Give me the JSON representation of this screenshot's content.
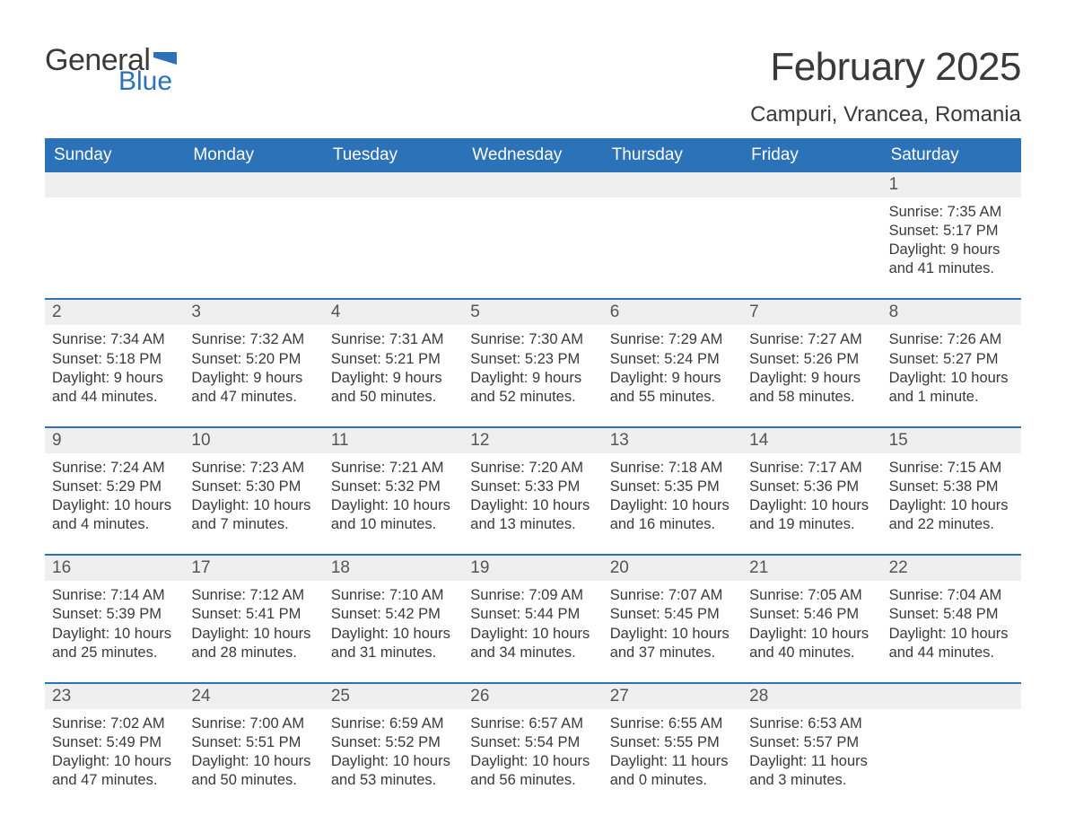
{
  "logo": {
    "text_general": "General",
    "text_blue": "Blue",
    "flag_color": "#2c72b8"
  },
  "title": "February 2025",
  "location": "Campuri, Vrancea, Romania",
  "colors": {
    "header_bg": "#2c72b8",
    "header_text": "#ffffff",
    "daynum_bg": "#efefef",
    "week_border": "#2c72b8",
    "body_text": "#3a3a3a",
    "background": "#ffffff"
  },
  "font": {
    "family": "Arial",
    "title_size_pt": 33,
    "location_size_pt": 18,
    "header_size_pt": 14,
    "body_size_pt": 12
  },
  "day_headers": [
    "Sunday",
    "Monday",
    "Tuesday",
    "Wednesday",
    "Thursday",
    "Friday",
    "Saturday"
  ],
  "weeks": [
    {
      "days": [
        null,
        null,
        null,
        null,
        null,
        null,
        {
          "n": "1",
          "sunrise": "7:35 AM",
          "sunset": "5:17 PM",
          "daylight": "9 hours and 41 minutes."
        }
      ]
    },
    {
      "days": [
        {
          "n": "2",
          "sunrise": "7:34 AM",
          "sunset": "5:18 PM",
          "daylight": "9 hours and 44 minutes."
        },
        {
          "n": "3",
          "sunrise": "7:32 AM",
          "sunset": "5:20 PM",
          "daylight": "9 hours and 47 minutes."
        },
        {
          "n": "4",
          "sunrise": "7:31 AM",
          "sunset": "5:21 PM",
          "daylight": "9 hours and 50 minutes."
        },
        {
          "n": "5",
          "sunrise": "7:30 AM",
          "sunset": "5:23 PM",
          "daylight": "9 hours and 52 minutes."
        },
        {
          "n": "6",
          "sunrise": "7:29 AM",
          "sunset": "5:24 PM",
          "daylight": "9 hours and 55 minutes."
        },
        {
          "n": "7",
          "sunrise": "7:27 AM",
          "sunset": "5:26 PM",
          "daylight": "9 hours and 58 minutes."
        },
        {
          "n": "8",
          "sunrise": "7:26 AM",
          "sunset": "5:27 PM",
          "daylight": "10 hours and 1 minute."
        }
      ]
    },
    {
      "days": [
        {
          "n": "9",
          "sunrise": "7:24 AM",
          "sunset": "5:29 PM",
          "daylight": "10 hours and 4 minutes."
        },
        {
          "n": "10",
          "sunrise": "7:23 AM",
          "sunset": "5:30 PM",
          "daylight": "10 hours and 7 minutes."
        },
        {
          "n": "11",
          "sunrise": "7:21 AM",
          "sunset": "5:32 PM",
          "daylight": "10 hours and 10 minutes."
        },
        {
          "n": "12",
          "sunrise": "7:20 AM",
          "sunset": "5:33 PM",
          "daylight": "10 hours and 13 minutes."
        },
        {
          "n": "13",
          "sunrise": "7:18 AM",
          "sunset": "5:35 PM",
          "daylight": "10 hours and 16 minutes."
        },
        {
          "n": "14",
          "sunrise": "7:17 AM",
          "sunset": "5:36 PM",
          "daylight": "10 hours and 19 minutes."
        },
        {
          "n": "15",
          "sunrise": "7:15 AM",
          "sunset": "5:38 PM",
          "daylight": "10 hours and 22 minutes."
        }
      ]
    },
    {
      "days": [
        {
          "n": "16",
          "sunrise": "7:14 AM",
          "sunset": "5:39 PM",
          "daylight": "10 hours and 25 minutes."
        },
        {
          "n": "17",
          "sunrise": "7:12 AM",
          "sunset": "5:41 PM",
          "daylight": "10 hours and 28 minutes."
        },
        {
          "n": "18",
          "sunrise": "7:10 AM",
          "sunset": "5:42 PM",
          "daylight": "10 hours and 31 minutes."
        },
        {
          "n": "19",
          "sunrise": "7:09 AM",
          "sunset": "5:44 PM",
          "daylight": "10 hours and 34 minutes."
        },
        {
          "n": "20",
          "sunrise": "7:07 AM",
          "sunset": "5:45 PM",
          "daylight": "10 hours and 37 minutes."
        },
        {
          "n": "21",
          "sunrise": "7:05 AM",
          "sunset": "5:46 PM",
          "daylight": "10 hours and 40 minutes."
        },
        {
          "n": "22",
          "sunrise": "7:04 AM",
          "sunset": "5:48 PM",
          "daylight": "10 hours and 44 minutes."
        }
      ]
    },
    {
      "days": [
        {
          "n": "23",
          "sunrise": "7:02 AM",
          "sunset": "5:49 PM",
          "daylight": "10 hours and 47 minutes."
        },
        {
          "n": "24",
          "sunrise": "7:00 AM",
          "sunset": "5:51 PM",
          "daylight": "10 hours and 50 minutes."
        },
        {
          "n": "25",
          "sunrise": "6:59 AM",
          "sunset": "5:52 PM",
          "daylight": "10 hours and 53 minutes."
        },
        {
          "n": "26",
          "sunrise": "6:57 AM",
          "sunset": "5:54 PM",
          "daylight": "10 hours and 56 minutes."
        },
        {
          "n": "27",
          "sunrise": "6:55 AM",
          "sunset": "5:55 PM",
          "daylight": "11 hours and 0 minutes."
        },
        {
          "n": "28",
          "sunrise": "6:53 AM",
          "sunset": "5:57 PM",
          "daylight": "11 hours and 3 minutes."
        },
        null
      ]
    }
  ],
  "labels": {
    "sunrise": "Sunrise: ",
    "sunset": "Sunset: ",
    "daylight": "Daylight: "
  }
}
